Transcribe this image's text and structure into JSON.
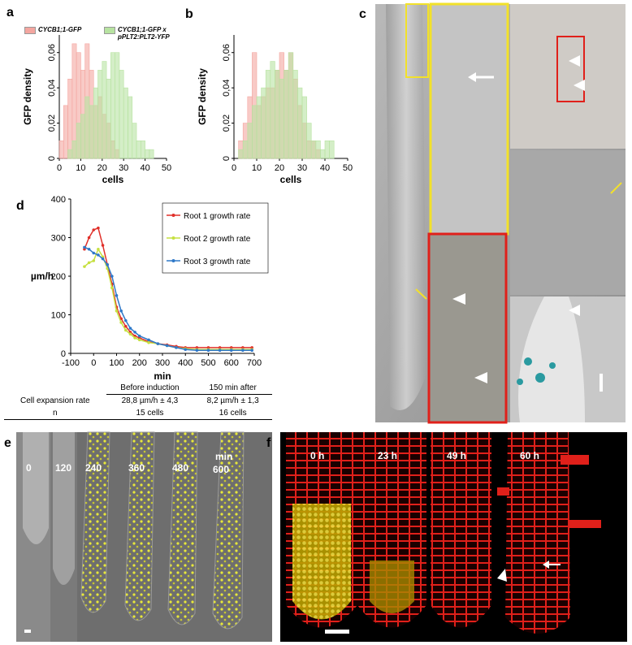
{
  "panel_labels": [
    "a",
    "b",
    "c",
    "d",
    "e",
    "f"
  ],
  "chart_data": [
    {
      "type": "histogram",
      "xlabel": "cells",
      "ylabel": "GFP density",
      "bins": [
        0,
        2,
        4,
        6,
        8,
        10,
        12,
        14,
        16,
        18,
        20,
        22,
        24,
        26,
        28,
        30,
        32,
        34,
        36,
        38,
        40,
        42,
        44
      ],
      "xlim": [
        0,
        50
      ],
      "xticks": [
        0,
        10,
        20,
        30,
        40,
        50
      ],
      "ylim": [
        0,
        0.07
      ],
      "yticks": [
        0,
        {
          "value": 0.02,
          "label": "0,02"
        },
        {
          "value": 0.04,
          "label": "0,04"
        },
        {
          "value": 0.06,
          "label": "0,06"
        }
      ],
      "series": [
        {
          "name": "CYCB1;1-GFP",
          "color": "#f4a6a0",
          "values": [
            0.01,
            0.03,
            0.045,
            0.065,
            0.06,
            0.05,
            0.065,
            0.05,
            0.03,
            0.035,
            0.025,
            0.02,
            0.01,
            0.005,
            0,
            0,
            0,
            0,
            0,
            0,
            0,
            0
          ]
        },
        {
          "name": "CYCB1;1-GFP x pPLT2:PLT2-YFP",
          "color": "#b7e3a1",
          "values": [
            0,
            0,
            0.005,
            0.01,
            0.02,
            0.025,
            0.035,
            0.03,
            0.04,
            0.05,
            0.055,
            0.045,
            0.06,
            0.06,
            0.05,
            0.04,
            0.035,
            0.02,
            0.01,
            0.01,
            0.005,
            0.005
          ]
        }
      ]
    },
    {
      "type": "histogram",
      "xlabel": "cells",
      "ylabel": "GFP density",
      "bins": [
        0,
        2,
        4,
        6,
        8,
        10,
        12,
        14,
        16,
        18,
        20,
        22,
        24,
        26,
        28,
        30,
        32,
        34,
        36,
        38,
        40,
        42,
        44
      ],
      "xlim": [
        0,
        50
      ],
      "xticks": [
        0,
        10,
        20,
        30,
        40,
        50
      ],
      "ylim": [
        0,
        0.07
      ],
      "yticks": [
        0,
        {
          "value": 0.02,
          "label": "0,02"
        },
        {
          "value": 0.04,
          "label": "0,04"
        },
        {
          "value": 0.06,
          "label": "0,06"
        }
      ],
      "series": [
        {
          "color": "#f4a6a0",
          "values": [
            0,
            0.01,
            0.02,
            0.035,
            0.06,
            0.03,
            0.035,
            0.04,
            0.04,
            0.05,
            0.06,
            0.05,
            0.06,
            0.045,
            0.03,
            0.02,
            0.01,
            0.01,
            0.005,
            0,
            0,
            0
          ]
        },
        {
          "color": "#b7e3a1",
          "values": [
            0,
            0.005,
            0.01,
            0.02,
            0.03,
            0.035,
            0.04,
            0.05,
            0.055,
            0.05,
            0.045,
            0.05,
            0.06,
            0.05,
            0.04,
            0.035,
            0.02,
            0.01,
            0.01,
            0.005,
            0.01,
            0.01
          ]
        }
      ]
    },
    {
      "type": "line",
      "xlabel": "min",
      "ylabel": "µm/h",
      "legend": "upper right",
      "x": [
        -40,
        -20,
        0,
        20,
        40,
        60,
        80,
        100,
        120,
        140,
        160,
        180,
        200,
        240,
        280,
        320,
        360,
        400,
        450,
        500,
        550,
        600,
        650,
        690
      ],
      "xlim": [
        -100,
        700
      ],
      "xticks": [
        -100,
        0,
        100,
        200,
        300,
        400,
        500,
        600,
        700
      ],
      "ylim": [
        0,
        400
      ],
      "yticks": [
        0,
        100,
        200,
        300,
        400
      ],
      "series": [
        {
          "name": "Root 1 growth rate",
          "color": "#e0302a",
          "values": [
            270,
            300,
            320,
            325,
            280,
            230,
            180,
            120,
            90,
            70,
            55,
            45,
            40,
            30,
            25,
            22,
            18,
            15,
            15,
            15,
            15,
            15,
            15,
            15
          ]
        },
        {
          "name": "Root 2 growth rate",
          "color": "#c6e040",
          "values": [
            225,
            235,
            240,
            270,
            250,
            220,
            170,
            110,
            80,
            60,
            50,
            40,
            35,
            28,
            25,
            20,
            15,
            12,
            10,
            10,
            10,
            10,
            10,
            10
          ]
        },
        {
          "name": "Root 3 growth rate",
          "color": "#2f78c8",
          "values": [
            275,
            270,
            260,
            255,
            245,
            230,
            200,
            150,
            110,
            85,
            65,
            55,
            45,
            35,
            25,
            20,
            15,
            10,
            8,
            8,
            8,
            8,
            8,
            8
          ]
        }
      ]
    }
  ],
  "table": {
    "columns": [
      "Before induction",
      "150 min after"
    ],
    "rows": [
      [
        "Cell expansion rate",
        "28,8  µm/h ± 4,3",
        "8,2 µm/h ± 1,3"
      ],
      [
        "n",
        "15 cells",
        "16 cells"
      ]
    ]
  },
  "panel_e": {
    "times": [
      "0",
      "120",
      "240",
      "360",
      "480",
      "600"
    ],
    "unit": "min"
  },
  "panel_f": {
    "times": [
      "0 h",
      "23 h",
      "49 h",
      "60 h"
    ]
  }
}
